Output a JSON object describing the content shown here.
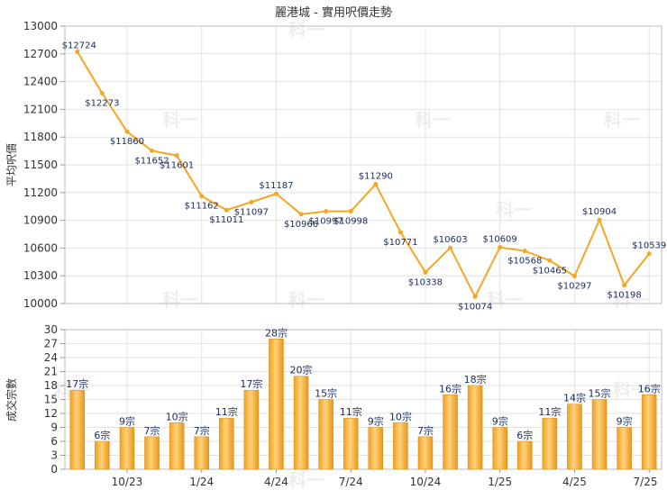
{
  "chart_data": [
    {
      "type": "line",
      "title": "麗港城 - 實用呎價走勢",
      "ylabel": "平均呎價",
      "ylim": [
        10000,
        13000
      ],
      "yticks": [
        10000,
        10300,
        10600,
        10900,
        11200,
        11500,
        11800,
        12100,
        12400,
        12700,
        13000
      ],
      "value_prefix": "$",
      "grid": true,
      "series": [
        {
          "color": "#f5a623",
          "values": [
            12724,
            12273,
            11860,
            11652,
            11601,
            11162,
            11011,
            11097,
            11187,
            10966,
            10997,
            10998,
            11290,
            10771,
            10338,
            10603,
            10074,
            10609,
            10568,
            10465,
            10297,
            10904,
            10198,
            10539
          ]
        }
      ]
    },
    {
      "type": "bar",
      "ylabel": "成交宗數",
      "ylim": [
        0,
        30
      ],
      "yticks": [
        0,
        3,
        6,
        9,
        12,
        15,
        18,
        21,
        24,
        27,
        30
      ],
      "value_suffix": "宗",
      "x_tick_labels": [
        "10/23",
        "1/24",
        "4/24",
        "7/24",
        "10/24",
        "1/25",
        "4/25",
        "7/25"
      ],
      "x_tick_positions": [
        2.5,
        5.5,
        8.5,
        11.5,
        14.5,
        17.5,
        20.5,
        23.5
      ],
      "grid": true,
      "series": [
        {
          "color": "#f5a623",
          "values": [
            17,
            6,
            9,
            7,
            10,
            7,
            11,
            17,
            28,
            20,
            15,
            11,
            9,
            10,
            7,
            16,
            18,
            9,
            6,
            11,
            14,
            15,
            9,
            16
          ]
        }
      ]
    }
  ],
  "watermark": "科一"
}
